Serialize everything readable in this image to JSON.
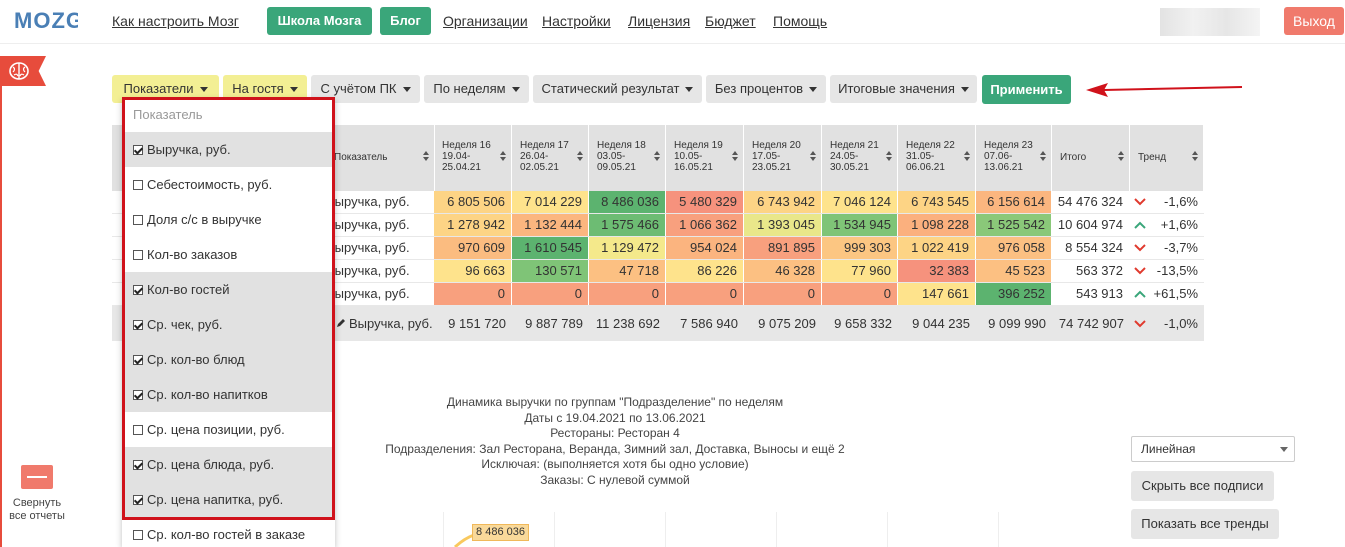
{
  "nav": {
    "links": [
      "Как настроить Мозг",
      "Организации",
      "Настройки",
      "Лицензия",
      "Бюджет",
      "Помощь"
    ],
    "school_label": "Школа Мозга",
    "blog_label": "Блог",
    "exit_label": "Выход",
    "logo_text": "MOZG"
  },
  "left": {
    "collapse_label": "Свернуть все отчеты"
  },
  "toolbar": {
    "buttons": [
      "Показатели",
      "На гостя",
      "С учётом ПК",
      "По неделям",
      "Статический результат",
      "Без процентов",
      "Итоговые значения"
    ],
    "apply_label": "Применить"
  },
  "table": {
    "header_label": "Показатель",
    "weeks": [
      {
        "name": "Неделя 16",
        "from": "19.04-",
        "to": "25.04.21"
      },
      {
        "name": "Неделя 17",
        "from": "26.04-",
        "to": "02.05.21"
      },
      {
        "name": "Неделя 18",
        "from": "03.05-",
        "to": "09.05.21"
      },
      {
        "name": "Неделя 19",
        "from": "10.05-",
        "to": "16.05.21"
      },
      {
        "name": "Неделя 20",
        "from": "17.05-",
        "to": "23.05.21"
      },
      {
        "name": "Неделя 21",
        "from": "24.05-",
        "to": "30.05.21"
      },
      {
        "name": "Неделя 22",
        "from": "31.05-",
        "to": "06.06.21"
      },
      {
        "name": "Неделя 23",
        "from": "07.06-",
        "to": "13.06.21"
      }
    ],
    "total_header": "Итого",
    "trend_header": "Тренд",
    "rows": [
      {
        "label": "Выручка, руб.",
        "values": [
          "6 805 506",
          "7 014 229",
          "8 486 036",
          "5 480 329",
          "6 743 942",
          "7 046 124",
          "6 743 545",
          "6 156 614"
        ],
        "colors": [
          "#fdd485",
          "#fee38c",
          "#5cb36f",
          "#f6927d",
          "#fdd485",
          "#fee38c",
          "#fdd485",
          "#fbb67f"
        ],
        "total": "54 476 324",
        "trend_dir": "down",
        "trend": "-1,6%"
      },
      {
        "label": "Выручка, руб.",
        "values": [
          "1 278 942",
          "1 132 444",
          "1 575 466",
          "1 066 362",
          "1 393 045",
          "1 534 945",
          "1 098 228",
          "1 525 542"
        ],
        "colors": [
          "#fdd485",
          "#fbb67f",
          "#6dbc73",
          "#f8a07e",
          "#e9e78a",
          "#7fc477",
          "#fbb07e",
          "#8ac879"
        ],
        "total": "10 604 974",
        "trend_dir": "up",
        "trend": "+1,6%"
      },
      {
        "label": "Выручка, руб.",
        "values": [
          "970 609",
          "1 610 545",
          "1 129 472",
          "954 024",
          "891 895",
          "999 303",
          "1 022 419",
          "976 058"
        ],
        "colors": [
          "#fbbc80",
          "#5cb36f",
          "#f4e98b",
          "#fbb47f",
          "#f8a07e",
          "#fcc682",
          "#fdd485",
          "#fcc082"
        ],
        "total": "8 554 324",
        "trend_dir": "down",
        "trend": "-3,7%"
      },
      {
        "label": "Выручка, руб.",
        "values": [
          "96 663",
          "130 571",
          "47 718",
          "86 226",
          "46 328",
          "77 960",
          "32 383",
          "45 523"
        ],
        "colors": [
          "#fee38c",
          "#7fc477",
          "#fcc082",
          "#fee38c",
          "#fcc082",
          "#fee38c",
          "#f6927d",
          "#fcc082"
        ],
        "total": "563 372",
        "trend_dir": "down",
        "trend": "-13,5%"
      },
      {
        "label": "Выручка, руб.",
        "values": [
          "0",
          "0",
          "0",
          "0",
          "0",
          "0",
          "147 661",
          "396 252"
        ],
        "colors": [
          "#f8a07e",
          "#f8a07e",
          "#f8a07e",
          "#f8a07e",
          "#f8a07e",
          "#f8a07e",
          "#fee38c",
          "#5cb36f"
        ],
        "total": "543 913",
        "trend_dir": "up",
        "trend": "+61,5%"
      }
    ],
    "total_row": {
      "label": "Выручка, руб.",
      "values": [
        "9 151 720",
        "9 887 789",
        "11 238 692",
        "7 586 940",
        "9 075 209",
        "9 658 332",
        "9 044 235",
        "9 099 990"
      ],
      "total": "74 742 907",
      "trend_dir": "down",
      "trend": "-1,0%"
    }
  },
  "dropdown": {
    "header": "Показатель",
    "items": [
      {
        "label": "Выручка, руб.",
        "checked": true
      },
      {
        "label": "Себестоимость, руб.",
        "checked": false
      },
      {
        "label": "Доля с/с в выручке",
        "checked": false
      },
      {
        "label": "Кол-во заказов",
        "checked": false
      },
      {
        "label": "Кол-во гостей",
        "checked": true
      },
      {
        "label": "Ср. чек, руб.",
        "checked": true
      },
      {
        "label": "Ср. кол-во блюд",
        "checked": true
      },
      {
        "label": "Ср. кол-во напитков",
        "checked": true
      },
      {
        "label": "Ср. цена позиции, руб.",
        "checked": false
      },
      {
        "label": "Ср. цена блюда, руб.",
        "checked": true
      },
      {
        "label": "Ср. цена напитка, руб.",
        "checked": true
      },
      {
        "label": "Ср. кол-во гостей в заказе",
        "checked": false
      }
    ]
  },
  "chart": {
    "title_lines": [
      "Динамика выручки по группам \"Подразделение\" по неделям",
      "Даты с 19.04.2021 по 13.06.2021",
      "Рестораны: Ресторан 4",
      "Подразделения: Зал Ресторана, Веранда, Зимний зал, Доставка, Выносы и ещё 2",
      "Исключая: (выполняется хотя бы одно условие)",
      "Заказы: С нулевой суммой"
    ],
    "chart_type_value": "Линейная",
    "hide_labels_button": "Скрыть все подписи",
    "show_trends_button": "Показать все тренды",
    "peak_label": "8 486 036"
  },
  "colors": {
    "green_button": "#3aa67a",
    "exit_button": "#f07a6c",
    "highlight_frame": "#d0121b",
    "arrow": "#d0121b",
    "trend_down": "#e03a2e",
    "trend_up": "#3aa67a"
  }
}
